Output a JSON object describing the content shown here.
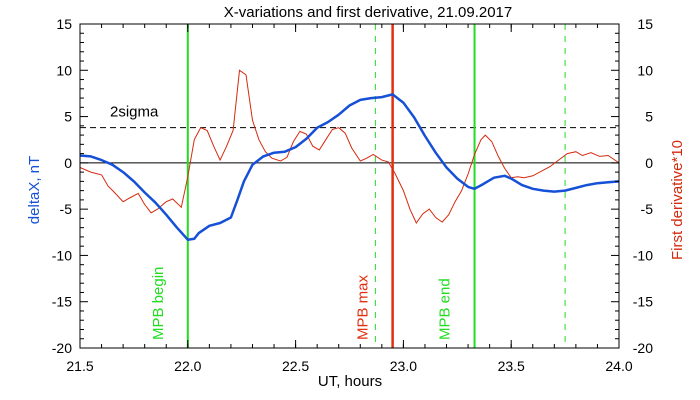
{
  "chart_data": {
    "type": "line",
    "title": "X-variations and first derivative, 21.09.2017",
    "xlabel": "UT, hours",
    "ylabel_left": "deltaX, nT",
    "ylabel_right": "First derivative*10",
    "xlim": [
      21.5,
      24.0
    ],
    "ylim_left": [
      -20,
      15
    ],
    "ylim_right": [
      -20,
      15
    ],
    "x_ticks": [
      "21.5",
      "22.0",
      "22.5",
      "23.0",
      "23.5",
      "24.0"
    ],
    "y_ticks_left": [
      "15",
      "10",
      "5",
      "0",
      "-5",
      "-10",
      "-15",
      "-20"
    ],
    "y_ticks_right": [
      "15",
      "10",
      "5",
      "0",
      "-5",
      "-10",
      "-15",
      "-20"
    ],
    "grid": false,
    "colors": {
      "deltaX": "#1550d6",
      "derivative": "#d42a0f",
      "mpb": "#22dd22",
      "max": "#e03010",
      "reference": "#000000"
    },
    "series": [
      {
        "values": [
          [
            21.5,
            0.8
          ],
          [
            21.55,
            0.7
          ],
          [
            21.6,
            0.3
          ],
          [
            21.65,
            -0.2
          ],
          [
            21.7,
            -1.0
          ],
          [
            21.75,
            -2.0
          ],
          [
            21.8,
            -3.2
          ],
          [
            21.85,
            -4.3
          ],
          [
            21.9,
            -5.6
          ],
          [
            21.95,
            -7.0
          ],
          [
            22.0,
            -8.3
          ],
          [
            22.03,
            -8.2
          ],
          [
            22.05,
            -7.6
          ],
          [
            22.1,
            -6.8
          ],
          [
            22.15,
            -6.5
          ],
          [
            22.2,
            -5.9
          ],
          [
            22.23,
            -4.0
          ],
          [
            22.26,
            -2.0
          ],
          [
            22.3,
            -0.2
          ],
          [
            22.35,
            0.7
          ],
          [
            22.4,
            1.1
          ],
          [
            22.45,
            1.2
          ],
          [
            22.5,
            1.7
          ],
          [
            22.55,
            2.6
          ],
          [
            22.6,
            3.8
          ],
          [
            22.65,
            4.4
          ],
          [
            22.7,
            5.2
          ],
          [
            22.75,
            6.2
          ],
          [
            22.8,
            6.8
          ],
          [
            22.85,
            7.0
          ],
          [
            22.9,
            7.1
          ],
          [
            22.95,
            7.4
          ],
          [
            23.0,
            6.5
          ],
          [
            23.05,
            4.9
          ],
          [
            23.1,
            2.9
          ],
          [
            23.15,
            1.1
          ],
          [
            23.2,
            -0.5
          ],
          [
            23.25,
            -1.7
          ],
          [
            23.3,
            -2.6
          ],
          [
            23.33,
            -2.8
          ],
          [
            23.37,
            -2.3
          ],
          [
            23.42,
            -1.6
          ],
          [
            23.47,
            -1.4
          ],
          [
            23.5,
            -1.7
          ],
          [
            23.55,
            -2.4
          ],
          [
            23.6,
            -2.8
          ],
          [
            23.65,
            -3.0
          ],
          [
            23.7,
            -3.1
          ],
          [
            23.75,
            -3.0
          ],
          [
            23.8,
            -2.7
          ],
          [
            23.85,
            -2.4
          ],
          [
            23.9,
            -2.2
          ],
          [
            23.95,
            -2.1
          ],
          [
            24.0,
            -2.0
          ]
        ]
      },
      {
        "values": [
          [
            21.5,
            -0.5
          ],
          [
            21.55,
            -1.0
          ],
          [
            21.6,
            -1.3
          ],
          [
            21.63,
            -2.5
          ],
          [
            21.66,
            -3.2
          ],
          [
            21.7,
            -4.2
          ],
          [
            21.73,
            -3.8
          ],
          [
            21.77,
            -3.3
          ],
          [
            21.8,
            -4.5
          ],
          [
            21.83,
            -5.4
          ],
          [
            21.86,
            -5.0
          ],
          [
            21.9,
            -4.2
          ],
          [
            21.93,
            -3.9
          ],
          [
            21.97,
            -4.8
          ],
          [
            22.0,
            -1.5
          ],
          [
            22.03,
            2.5
          ],
          [
            22.06,
            3.8
          ],
          [
            22.09,
            3.5
          ],
          [
            22.12,
            1.8
          ],
          [
            22.15,
            0.3
          ],
          [
            22.18,
            1.8
          ],
          [
            22.21,
            3.5
          ],
          [
            22.24,
            10.0
          ],
          [
            22.27,
            9.5
          ],
          [
            22.3,
            4.6
          ],
          [
            22.33,
            2.5
          ],
          [
            22.36,
            1.2
          ],
          [
            22.39,
            0.5
          ],
          [
            22.43,
            0.2
          ],
          [
            22.46,
            0.6
          ],
          [
            22.49,
            2.3
          ],
          [
            22.52,
            3.4
          ],
          [
            22.55,
            3.1
          ],
          [
            22.58,
            1.8
          ],
          [
            22.61,
            1.4
          ],
          [
            22.64,
            2.5
          ],
          [
            22.67,
            3.6
          ],
          [
            22.7,
            3.8
          ],
          [
            22.73,
            3.2
          ],
          [
            22.76,
            1.6
          ],
          [
            22.8,
            0.2
          ],
          [
            22.83,
            0.5
          ],
          [
            22.86,
            0.9
          ],
          [
            22.9,
            0.3
          ],
          [
            22.93,
            0.1
          ],
          [
            22.96,
            -1.1
          ],
          [
            23.0,
            -3.0
          ],
          [
            23.03,
            -5.0
          ],
          [
            23.06,
            -6.5
          ],
          [
            23.09,
            -5.5
          ],
          [
            23.12,
            -5.0
          ],
          [
            23.15,
            -5.9
          ],
          [
            23.18,
            -6.4
          ],
          [
            23.21,
            -5.6
          ],
          [
            23.24,
            -4.2
          ],
          [
            23.27,
            -3.0
          ],
          [
            23.3,
            -1.2
          ],
          [
            23.33,
            0.9
          ],
          [
            23.36,
            2.5
          ],
          [
            23.38,
            3.0
          ],
          [
            23.41,
            2.3
          ],
          [
            23.44,
            0.7
          ],
          [
            23.47,
            -0.6
          ],
          [
            23.5,
            -1.6
          ],
          [
            23.53,
            -1.5
          ],
          [
            23.56,
            -1.6
          ],
          [
            23.6,
            -1.4
          ],
          [
            23.64,
            -0.9
          ],
          [
            23.68,
            -0.4
          ],
          [
            23.72,
            0.3
          ],
          [
            23.76,
            1.0
          ],
          [
            23.8,
            1.2
          ],
          [
            23.83,
            0.8
          ],
          [
            23.87,
            1.1
          ],
          [
            23.91,
            0.7
          ],
          [
            23.95,
            0.8
          ],
          [
            24.0,
            0.0
          ]
        ]
      }
    ],
    "reference_lines": [
      {
        "label": "2sigma",
        "y": 3.8,
        "style": "dashed"
      },
      {
        "y": 0,
        "style": "solid"
      }
    ],
    "vertical_lines": [
      {
        "label": "MPB begin",
        "x": 22.0,
        "style": "solid",
        "color_key": "mpb"
      },
      {
        "label": "MPB max",
        "x": 22.95,
        "style": "solid",
        "color_key": "max"
      },
      {
        "label": "MPB end",
        "x": 23.33,
        "style": "solid",
        "color_key": "mpb"
      },
      {
        "x": 22.87,
        "style": "dashed",
        "color_key": "mpb"
      },
      {
        "x": 23.75,
        "style": "dashed",
        "color_key": "mpb"
      }
    ]
  }
}
